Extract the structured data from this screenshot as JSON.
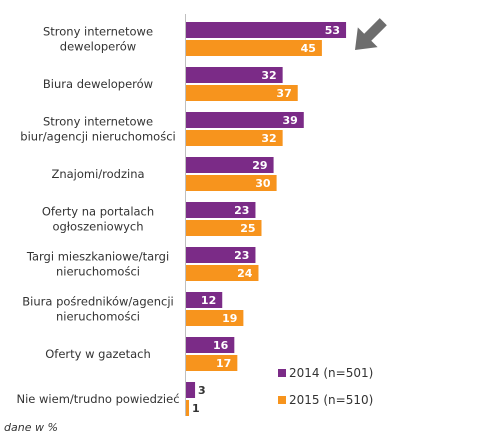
{
  "chart_data": {
    "type": "bar",
    "orientation": "horizontal",
    "categories": [
      [
        "Strony internetowe",
        "deweloperów"
      ],
      [
        "Biura deweloperów"
      ],
      [
        "Strony internetowe",
        "biur/agencji nieruchomości"
      ],
      [
        "Znajomi/rodzina"
      ],
      [
        "Oferty na portalach",
        "ogłoszeniowych"
      ],
      [
        "Targi mieszkaniowe/targi",
        "nieruchomości"
      ],
      [
        "Biura pośredników/agencji",
        "nieruchomości"
      ],
      [
        "Oferty w gazetach"
      ],
      [
        "Nie wiem/trudno powiedzieć"
      ]
    ],
    "series": [
      {
        "name": "2014 (n=501)",
        "color": "#7b2b87",
        "values": [
          53,
          32,
          39,
          29,
          23,
          23,
          12,
          16,
          3
        ]
      },
      {
        "name": "2015 (n=510)",
        "color": "#f7941d",
        "values": [
          45,
          37,
          32,
          30,
          25,
          24,
          19,
          17,
          1
        ]
      }
    ],
    "xlim": [
      0,
      60
    ],
    "legend": "bottom-right",
    "grid": false,
    "note": "dane w %",
    "annotation": "arrow-icon pointing to top bar"
  }
}
